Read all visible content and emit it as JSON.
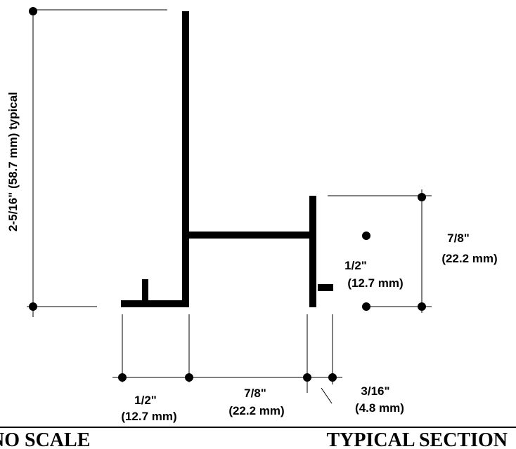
{
  "drawing": {
    "dimensions": {
      "overall_height": "2-5/16\" (58.7 mm)  typical",
      "right_height_in": "7/8\"",
      "right_height_mm": "(22.2 mm)",
      "inner_height_in": "1/2\"",
      "inner_height_mm": "(12.7 mm)",
      "bottom_left_in": "1/2\"",
      "bottom_left_mm": "(12.7 mm)",
      "bottom_mid_in": "7/8\"",
      "bottom_mid_mm": "(22.2 mm)",
      "bottom_right_in": "3/16\"",
      "bottom_right_mm": "(4.8 mm)"
    },
    "footer": {
      "left": "NO SCALE",
      "right": "TYPICAL SECTION"
    }
  }
}
